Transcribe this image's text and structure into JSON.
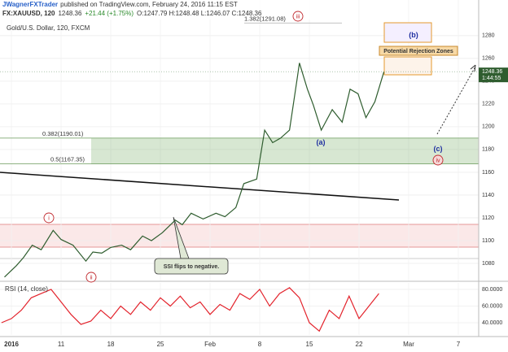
{
  "header": {
    "author": "JWagnerFXTrader",
    "published": "published on TradingView.com, February 24, 2016 11:15 EST",
    "symbol": "FX:XAUUSD, 120",
    "last": "1248.36",
    "change": "+21.44 (+1.75%)",
    "ohlc": "O:1247.79 H:1248.48 L:1246.07 C:1248.36"
  },
  "chart_data": [
    {
      "type": "line",
      "title": "Gold/U.S. Dollar, 120, FXCM",
      "color": "#2f5d2f",
      "x": [
        -0.7,
        0.5,
        1.2,
        2.1,
        3.0,
        4.2,
        5.0,
        6.2,
        7.5,
        8.2,
        9.1,
        10.0,
        11.1,
        12.0,
        13.2,
        14.1,
        15.2,
        16.5,
        17.2,
        18.1,
        19.3,
        20.6,
        21.5,
        22.6,
        23.4,
        24.7,
        25.5,
        26.3,
        27.1,
        28.0,
        28.8,
        29.0,
        29.8,
        30.4,
        31.2,
        32.3,
        33.3,
        34.1,
        34.9,
        35.7,
        36.6,
        37.5
      ],
      "values": [
        1068,
        1078,
        1085,
        1096,
        1092,
        1109,
        1101,
        1096,
        1082,
        1090,
        1089,
        1094,
        1096,
        1092,
        1104,
        1100,
        1107,
        1118,
        1114,
        1124,
        1119,
        1124,
        1121,
        1129,
        1150,
        1154,
        1197,
        1186,
        1190,
        1197,
        1244,
        1256,
        1233,
        1219,
        1197,
        1215,
        1204,
        1233,
        1229,
        1208,
        1222,
        1248
      ],
      "xlim": [
        -1.15,
        47.05
      ],
      "ylim": [
        1065,
        1297
      ],
      "xticks": [
        {
          "value": 0,
          "label": "2016"
        },
        {
          "value": 5,
          "label": "11"
        },
        {
          "value": 10,
          "label": "18"
        },
        {
          "value": 15,
          "label": "25"
        },
        {
          "value": 20,
          "label": "Feb"
        },
        {
          "value": 25,
          "label": "8"
        },
        {
          "value": 30,
          "label": "15"
        },
        {
          "value": 35,
          "label": "22"
        },
        {
          "value": 40,
          "label": "Mar"
        },
        {
          "value": 45,
          "label": "7"
        }
      ],
      "yticks": [
        1080,
        1100,
        1120,
        1140,
        1160,
        1180,
        1200,
        1220,
        1240,
        1260,
        1280
      ],
      "grid": true,
      "fib_levels": [
        {
          "value": 1291.08,
          "label": "1.382(1291.08)"
        },
        {
          "value": 1190.01,
          "label": "0.382(1190.01)"
        },
        {
          "value": 1167.35,
          "label": "0.5(1167.35)"
        }
      ],
      "price_tag": {
        "value": 1248.36,
        "label": "1248.36"
      },
      "countdown": "1:44:55",
      "wave_labels": [
        "i",
        "ii",
        "iii",
        "iv",
        "(a)",
        "(b)",
        "(c)"
      ],
      "annotations": [
        "Potential Rejection Zones",
        "SSI flips to negative."
      ]
    },
    {
      "type": "line",
      "title": "RSI (14, close)",
      "color": "#e3232c",
      "x": [
        -1,
        0,
        1,
        2,
        3,
        4,
        5,
        6,
        7,
        8,
        9,
        10,
        11,
        12,
        13,
        14,
        15,
        16,
        17,
        18,
        19,
        20,
        21,
        22,
        23,
        24,
        25,
        26,
        27,
        28,
        29,
        30,
        31,
        32,
        33,
        34,
        35,
        36,
        37
      ],
      "values": [
        40,
        45,
        55,
        70,
        75,
        80,
        65,
        50,
        38,
        42,
        55,
        45,
        60,
        50,
        65,
        55,
        70,
        60,
        72,
        58,
        65,
        50,
        62,
        55,
        75,
        68,
        80,
        60,
        75,
        82,
        70,
        40,
        30,
        55,
        45,
        72,
        45,
        60,
        75
      ],
      "xlim": [
        -1.15,
        47.05
      ],
      "ylim": [
        25.4,
        87.8
      ],
      "yticks": [
        {
          "value": 40,
          "label": "40.0000"
        },
        {
          "value": 60,
          "label": "60.0000"
        },
        {
          "value": 80,
          "label": "80.0000"
        }
      ],
      "grid": true
    }
  ]
}
